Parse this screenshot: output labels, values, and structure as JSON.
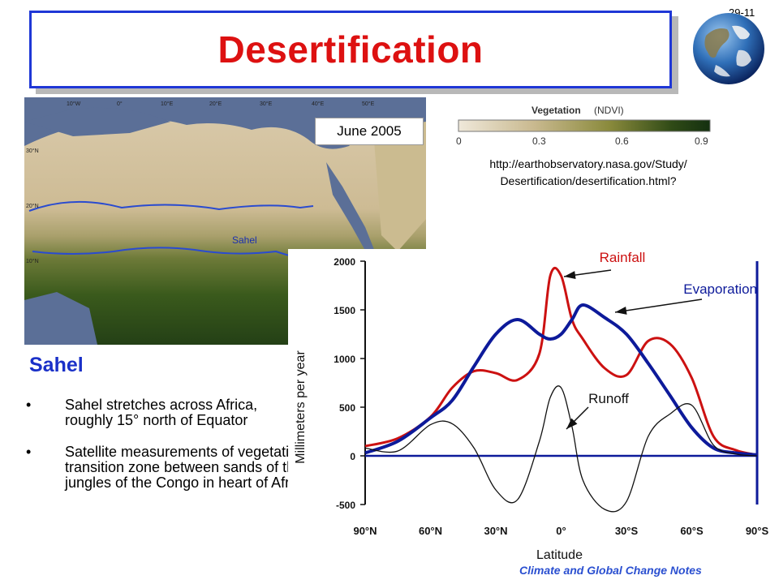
{
  "slide": {
    "number": "29-11",
    "title": "Desertification",
    "footer": "Climate and Global Change Notes"
  },
  "map": {
    "date_label": "June 2005",
    "region_label": "Sahel",
    "lon_labels": [
      "10°W",
      "0°",
      "10°E",
      "20°E",
      "30°E",
      "40°E",
      "50°E"
    ],
    "lat_labels": [
      "30°N",
      "20°N",
      "10°N"
    ]
  },
  "ndvi_legend": {
    "title": "Vegetation",
    "subtitle": "(NDVI)",
    "ticks": [
      "0",
      "0.3",
      "0.6",
      "0.9"
    ],
    "colors": [
      "#efe8da",
      "#c9b98f",
      "#8a8a3c",
      "#2f4a16",
      "#143010"
    ]
  },
  "source": {
    "line1": "http://earthobservatory.nasa.gov/Study/",
    "line2": "Desertification/desertification.html?"
  },
  "text": {
    "heading": "Sahel",
    "bullets": [
      "Sahel stretches across Africa, roughly 15° north of Equator",
      "Satellite measurements of vegetation reveal it as a transition zone between sands of the Sahara and jungles of the Congo in heart of Africa"
    ]
  },
  "chart_data": {
    "type": "line",
    "xlabel": "Latitude",
    "ylabel": "Millimeters per year",
    "ylim": [
      -500,
      2000
    ],
    "yticks": [
      "2000",
      "1500",
      "1000",
      "500",
      "0",
      "-500"
    ],
    "xticks": [
      "90°N",
      "60°N",
      "30°N",
      "0°",
      "30°S",
      "60°S",
      "90°S"
    ],
    "x": [
      90,
      75,
      60,
      50,
      40,
      30,
      20,
      10,
      5,
      0,
      -5,
      -10,
      -20,
      -30,
      -40,
      -50,
      -60,
      -70,
      -80,
      -90
    ],
    "series": [
      {
        "name": "Rainfall",
        "color": "#cc1111",
        "values": [
          100,
          180,
          400,
          700,
          870,
          850,
          780,
          1050,
          1850,
          1850,
          1400,
          1200,
          900,
          830,
          1180,
          1150,
          800,
          200,
          60,
          10
        ]
      },
      {
        "name": "Evaporation",
        "color": "#0d1a9a",
        "values": [
          30,
          150,
          390,
          570,
          920,
          1250,
          1400,
          1250,
          1200,
          1250,
          1400,
          1550,
          1420,
          1250,
          950,
          620,
          290,
          80,
          30,
          10
        ]
      },
      {
        "name": "Runoff",
        "color": "#111111",
        "values": [
          80,
          50,
          320,
          330,
          80,
          -350,
          -450,
          150,
          600,
          700,
          300,
          -250,
          -550,
          -470,
          200,
          430,
          520,
          110,
          20,
          0
        ]
      }
    ],
    "annotations": [
      "Rainfall",
      "Evaporation",
      "Runoff"
    ]
  }
}
